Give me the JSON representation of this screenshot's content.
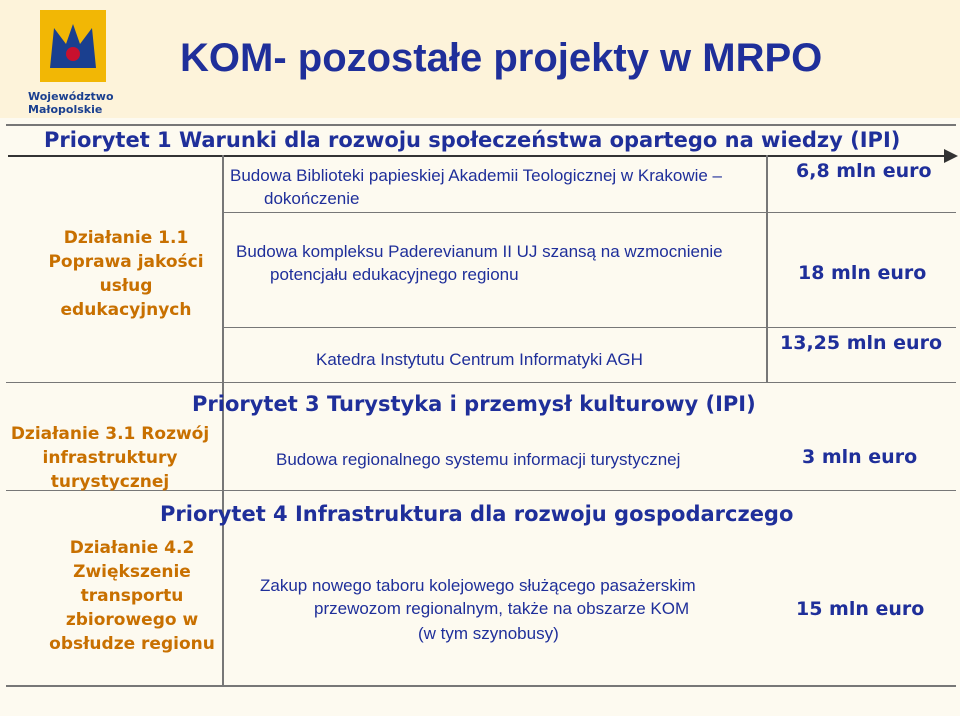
{
  "logo": {
    "line1": "Województwo",
    "line2": "Małopolskie"
  },
  "title": "KOM- pozostałe projekty w MRPO",
  "priorities": [
    {
      "label": "Priorytet 1 Warunki dla rozwoju społeczeństwa opartego na wiedzy (IPI)"
    },
    {
      "label": "Priorytet 3 Turystyka i przemysł kulturowy (IPI)"
    },
    {
      "label": "Priorytet 4 Infrastruktura dla rozwoju gospodarczego"
    }
  ],
  "actions": [
    {
      "label": "Działanie 1.1 Poprawa jakości usług edukacyjnych"
    },
    {
      "label": "Działanie 3.1 Rozwój infrastruktury turystycznej"
    },
    {
      "label": "Działanie 4.2 Zwiększenie transportu zbiorowego w obsłudze regionu"
    }
  ],
  "projects": [
    {
      "name_line1": "Budowa Biblioteki papieskiej Akademii Teologicznej w Krakowie –",
      "name_line2": "dokończenie",
      "amount": "6,8 mln euro"
    },
    {
      "name_line1": "Budowa kompleksu Paderevianum II UJ szansą na wzmocnienie",
      "name_line2": "potencjału edukacyjnego regionu",
      "amount": "18 mln euro"
    },
    {
      "name_line1": "Katedra Instytutu Centrum Informatyki AGH",
      "amount": "13,25 mln euro"
    },
    {
      "name_line1": "Budowa regionalnego systemu informacji turystycznej",
      "amount": "3 mln euro"
    },
    {
      "name_line1": "Zakup nowego taboru kolejowego służącego pasażerskim",
      "name_line2": "przewozom regionalnym, także na obszarze KOM",
      "name_line3": "(w tym szynobusy)",
      "amount": "15 mln euro"
    }
  ],
  "colors": {
    "title": "#1f2f9a",
    "action": "#c87000",
    "header_band": "#fdf3da",
    "logo": "#f2b705"
  }
}
